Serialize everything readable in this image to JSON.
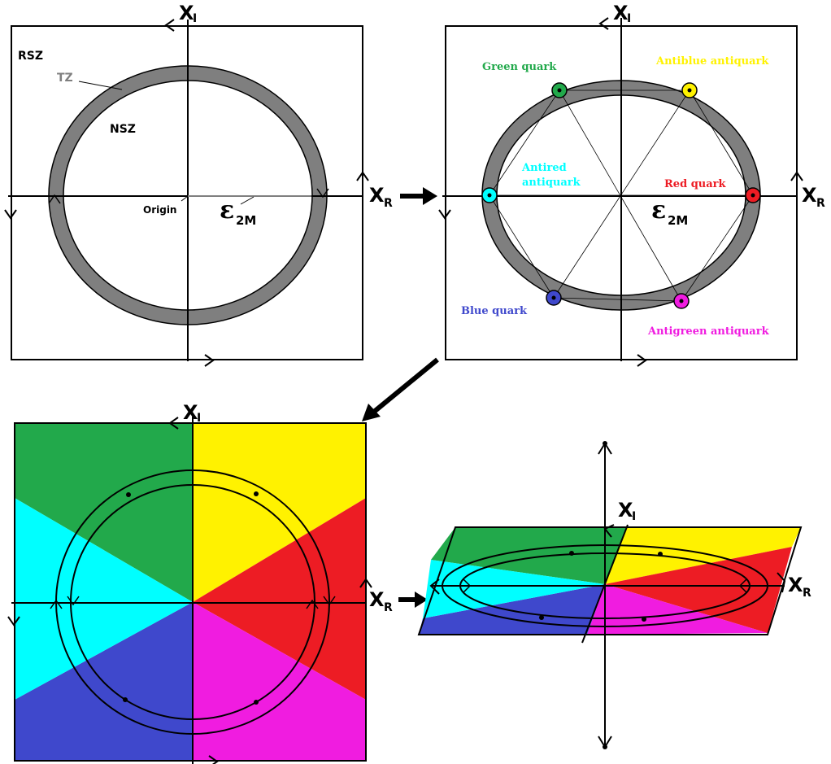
{
  "axes": {
    "x_imag": "X",
    "x_imag_sub": "I",
    "x_real": "X",
    "x_real_sub": "R"
  },
  "panel1": {
    "rsz": "RSZ",
    "tz": "TZ",
    "nsz": "NSZ",
    "origin": "Origin",
    "epsilon": "ε",
    "epsilon_sub": "2M"
  },
  "panel2": {
    "green": "Green quark",
    "antiblue": "Antiblue antiquark",
    "antired_1": "Antired",
    "antired_2": "antiquark",
    "red": "Red quark",
    "blue": "Blue quark",
    "antigreen": "Antigreen antiquark",
    "epsilon": "ε",
    "epsilon_sub": "2M"
  },
  "colors": {
    "green": "#22a94b",
    "yellow": "#fff200",
    "cyan": "#00ffff",
    "red": "#ed1c24",
    "blue": "#3f48cc",
    "magenta": "#f01ce0",
    "ring_gray": "#7f7f7f",
    "tz_label": "#7f7f7f"
  }
}
